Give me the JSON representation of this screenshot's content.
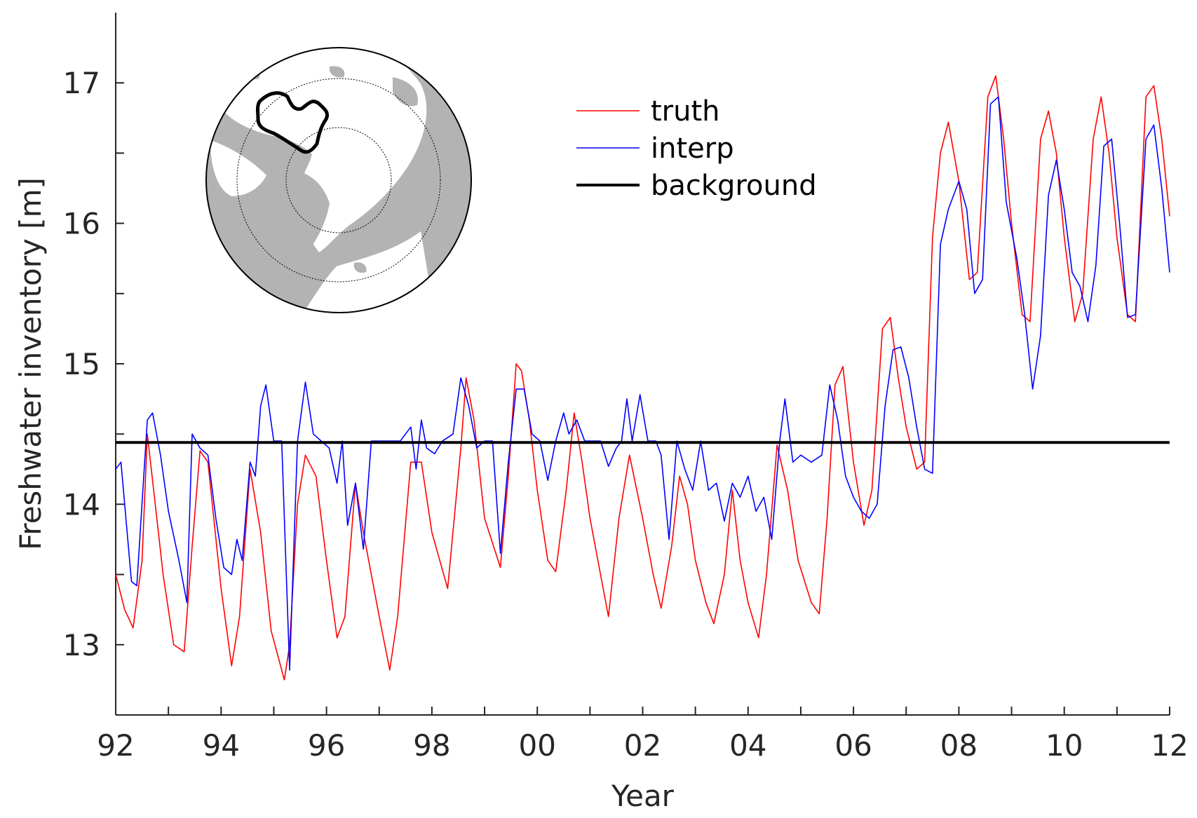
{
  "chart_data": {
    "type": "line",
    "title": "",
    "xlabel": "Year",
    "ylabel": "Freshwater inventory [m]",
    "xlim": [
      1992,
      2012
    ],
    "ylim": [
      12.5,
      17.5
    ],
    "x_ticks": [
      1992,
      1994,
      1996,
      1998,
      2000,
      2002,
      2004,
      2006,
      2008,
      2010,
      2012
    ],
    "x_tick_labels": [
      "92",
      "94",
      "96",
      "98",
      "00",
      "02",
      "04",
      "06",
      "08",
      "10",
      "12"
    ],
    "y_ticks": [
      13,
      14,
      15,
      16,
      17
    ],
    "y_tick_labels": [
      "13",
      "14",
      "15",
      "16",
      "17"
    ],
    "grid": false,
    "legend_position": "top-center",
    "series": [
      {
        "name": "truth",
        "color": "#ff0000",
        "x": [
          1992.0,
          1992.17,
          1992.33,
          1992.5,
          1992.6,
          1992.75,
          1992.9,
          1993.1,
          1993.3,
          1993.45,
          1993.6,
          1993.75,
          1994.0,
          1994.2,
          1994.35,
          1994.55,
          1994.75,
          1994.95,
          1995.2,
          1995.3,
          1995.45,
          1995.6,
          1995.8,
          1996.0,
          1996.2,
          1996.35,
          1996.55,
          1996.7,
          1997.0,
          1997.2,
          1997.35,
          1997.6,
          1997.8,
          1998.0,
          1998.3,
          1998.55,
          1998.65,
          1998.8,
          1999.0,
          1999.3,
          1999.45,
          1999.6,
          1999.7,
          1999.85,
          2000.0,
          2000.2,
          2000.35,
          2000.55,
          2000.7,
          2000.85,
          2001.0,
          2001.2,
          2001.35,
          2001.55,
          2001.75,
          2002.0,
          2002.2,
          2002.35,
          2002.55,
          2002.7,
          2002.85,
          2003.0,
          2003.2,
          2003.35,
          2003.55,
          2003.7,
          2003.85,
          2004.0,
          2004.2,
          2004.35,
          2004.55,
          2004.75,
          2004.95,
          2005.2,
          2005.35,
          2005.5,
          2005.65,
          2005.8,
          2006.0,
          2006.2,
          2006.35,
          2006.55,
          2006.7,
          2006.85,
          2007.0,
          2007.2,
          2007.35,
          2007.5,
          2007.65,
          2007.8,
          2008.0,
          2008.2,
          2008.35,
          2008.55,
          2008.7,
          2008.85,
          2009.0,
          2009.2,
          2009.35,
          2009.55,
          2009.7,
          2009.85,
          2010.0,
          2010.2,
          2010.35,
          2010.55,
          2010.7,
          2010.85,
          2011.0,
          2011.2,
          2011.35,
          2011.55,
          2011.7,
          2011.85,
          2012.0
        ],
        "y": [
          13.5,
          13.25,
          13.12,
          13.6,
          14.5,
          14.0,
          13.5,
          13.0,
          12.95,
          13.7,
          14.38,
          14.3,
          13.4,
          12.85,
          13.2,
          14.25,
          13.8,
          13.1,
          12.75,
          13.0,
          14.0,
          14.35,
          14.2,
          13.6,
          13.05,
          13.2,
          14.15,
          13.8,
          13.2,
          12.82,
          13.2,
          14.3,
          14.3,
          13.8,
          13.4,
          14.4,
          14.9,
          14.6,
          13.9,
          13.55,
          14.2,
          15.0,
          14.95,
          14.6,
          14.1,
          13.6,
          13.52,
          14.1,
          14.65,
          14.3,
          13.9,
          13.5,
          13.2,
          13.9,
          14.35,
          13.9,
          13.5,
          13.26,
          13.7,
          14.2,
          14.0,
          13.6,
          13.3,
          13.15,
          13.5,
          14.1,
          13.6,
          13.3,
          13.05,
          13.5,
          14.42,
          14.1,
          13.6,
          13.3,
          13.22,
          13.9,
          14.85,
          14.98,
          14.3,
          13.85,
          14.1,
          15.25,
          15.33,
          14.9,
          14.55,
          14.25,
          14.3,
          15.9,
          16.5,
          16.72,
          16.3,
          15.6,
          15.65,
          16.9,
          17.05,
          16.6,
          16.0,
          15.35,
          15.3,
          16.6,
          16.8,
          16.5,
          15.9,
          15.3,
          15.5,
          16.6,
          16.9,
          16.5,
          15.9,
          15.35,
          15.3,
          16.9,
          16.98,
          16.6,
          16.05
        ]
      },
      {
        "name": "interp",
        "color": "#0000ff",
        "x": [
          1992.0,
          1992.1,
          1992.3,
          1992.4,
          1992.6,
          1992.7,
          1992.85,
          1993.0,
          1993.2,
          1993.35,
          1993.45,
          1993.6,
          1993.75,
          1993.9,
          1994.05,
          1994.2,
          1994.3,
          1994.4,
          1994.55,
          1994.65,
          1994.75,
          1994.85,
          1995.0,
          1995.15,
          1995.3,
          1995.45,
          1995.6,
          1995.75,
          1995.9,
          1996.05,
          1996.2,
          1996.3,
          1996.4,
          1996.55,
          1996.7,
          1996.85,
          1997.0,
          1997.2,
          1997.4,
          1997.6,
          1997.7,
          1997.8,
          1997.9,
          1998.05,
          1998.2,
          1998.4,
          1998.55,
          1998.7,
          1998.85,
          1999.0,
          1999.15,
          1999.3,
          1999.45,
          1999.6,
          1999.75,
          1999.9,
          2000.05,
          2000.2,
          2000.35,
          2000.5,
          2000.6,
          2000.75,
          2000.9,
          2001.05,
          2001.2,
          2001.35,
          2001.5,
          2001.6,
          2001.7,
          2001.8,
          2001.95,
          2002.1,
          2002.25,
          2002.35,
          2002.5,
          2002.65,
          2002.8,
          2002.95,
          2003.1,
          2003.25,
          2003.4,
          2003.55,
          2003.7,
          2003.85,
          2004.0,
          2004.15,
          2004.3,
          2004.45,
          2004.6,
          2004.7,
          2004.85,
          2005.0,
          2005.2,
          2005.4,
          2005.55,
          2005.7,
          2005.85,
          2006.0,
          2006.15,
          2006.3,
          2006.45,
          2006.6,
          2006.75,
          2006.9,
          2007.05,
          2007.2,
          2007.35,
          2007.5,
          2007.65,
          2007.8,
          2008.0,
          2008.15,
          2008.3,
          2008.45,
          2008.6,
          2008.75,
          2008.9,
          2009.1,
          2009.25,
          2009.4,
          2009.55,
          2009.7,
          2009.85,
          2010.0,
          2010.15,
          2010.3,
          2010.45,
          2010.6,
          2010.75,
          2010.9,
          2011.05,
          2011.2,
          2011.35,
          2011.55,
          2011.7,
          2011.85,
          2012.0
        ],
        "y": [
          14.25,
          14.3,
          13.45,
          13.42,
          14.6,
          14.65,
          14.35,
          13.95,
          13.6,
          13.3,
          14.5,
          14.4,
          14.35,
          13.9,
          13.55,
          13.5,
          13.75,
          13.6,
          14.3,
          14.2,
          14.7,
          14.85,
          14.45,
          14.45,
          12.82,
          14.45,
          14.87,
          14.5,
          14.45,
          14.4,
          14.15,
          14.45,
          13.85,
          14.15,
          13.68,
          14.45,
          14.45,
          14.45,
          14.45,
          14.55,
          14.25,
          14.6,
          14.4,
          14.36,
          14.45,
          14.5,
          14.9,
          14.7,
          14.4,
          14.45,
          14.45,
          13.65,
          14.3,
          14.82,
          14.82,
          14.5,
          14.45,
          14.17,
          14.45,
          14.65,
          14.5,
          14.6,
          14.45,
          14.45,
          14.45,
          14.27,
          14.4,
          14.45,
          14.75,
          14.45,
          14.78,
          14.45,
          14.45,
          14.35,
          13.75,
          14.45,
          14.25,
          14.1,
          14.45,
          14.1,
          14.15,
          13.88,
          14.15,
          14.05,
          14.2,
          13.95,
          14.05,
          13.75,
          14.45,
          14.75,
          14.3,
          14.35,
          14.3,
          14.35,
          14.85,
          14.6,
          14.2,
          14.05,
          13.95,
          13.9,
          14.0,
          14.7,
          15.1,
          15.12,
          14.9,
          14.55,
          14.25,
          14.22,
          15.85,
          16.1,
          16.3,
          16.1,
          15.5,
          15.6,
          16.85,
          16.9,
          16.15,
          15.75,
          15.35,
          14.82,
          15.2,
          16.2,
          16.45,
          16.1,
          15.65,
          15.55,
          15.3,
          15.7,
          16.55,
          16.6,
          16.0,
          15.33,
          15.35,
          16.6,
          16.7,
          16.25,
          15.65
        ]
      },
      {
        "name": "background",
        "color": "#000000",
        "x": [
          1992,
          2012
        ],
        "y": [
          14.44,
          14.44
        ]
      }
    ]
  },
  "inset_map": {
    "description_icon": "arctic-polar-map-icon",
    "ocean_color": "#b3b3b3",
    "land_color": "#ffffff"
  }
}
